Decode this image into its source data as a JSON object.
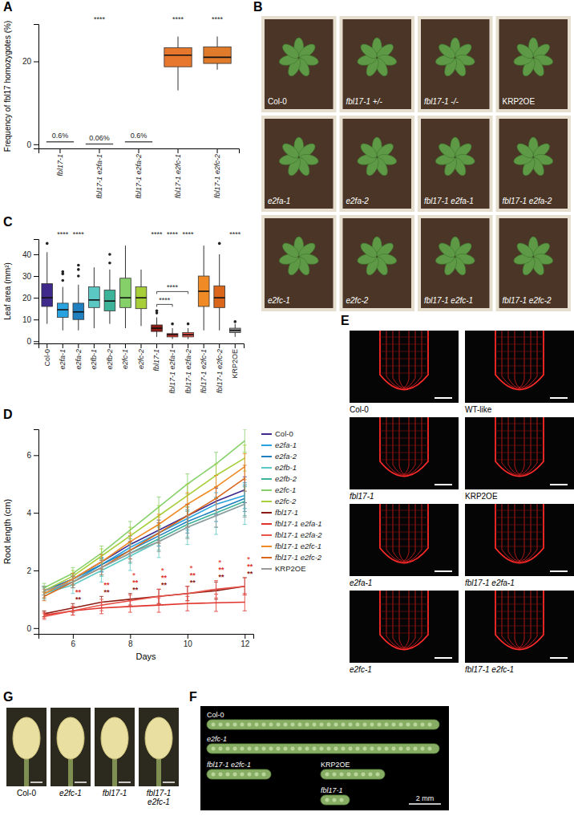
{
  "chart_data": [
    {
      "panel": "A",
      "type": "box",
      "y_label": "Frequency of fbl17 homozygotes (%)",
      "categories": [
        "fbl17-1",
        "fbl17-1 e2fa-1",
        "fbl17-1 e2fa-2",
        "fbl17-1 e2fc-1",
        "fbl17-1 e2fc-2"
      ],
      "boxes": [
        {
          "whislo": 0.6,
          "q1": 0.6,
          "med": 0.6,
          "q3": 0.6,
          "whishi": 0.6,
          "fliers": []
        },
        {
          "whislo": 0.06,
          "q1": 0.06,
          "med": 0.06,
          "q3": 0.06,
          "whishi": 0.06,
          "fliers": []
        },
        {
          "whislo": 0.6,
          "q1": 0.6,
          "med": 0.6,
          "q3": 0.6,
          "whishi": 0.6,
          "fliers": []
        },
        {
          "whislo": 13,
          "q1": 18.7,
          "med": 21.5,
          "q3": 23.3,
          "whishi": 26,
          "fliers": []
        },
        {
          "whislo": 18,
          "q1": 19.5,
          "med": 21,
          "q3": 23.5,
          "whishi": 26,
          "fliers": []
        }
      ],
      "colors": [
        "#555555",
        "#555555",
        "#555555",
        "#e8772e",
        "#e07b2c"
      ],
      "ylim": [
        -1,
        29
      ],
      "yticks": [
        0,
        20
      ],
      "box_labels": [
        {
          "category": 0,
          "text": "0.6%"
        },
        {
          "category": 1,
          "text": "0.06%"
        },
        {
          "category": 2,
          "text": "0.6%"
        }
      ],
      "significance": [
        {
          "category": 1,
          "text": "****"
        },
        {
          "category": 3,
          "text": "****"
        },
        {
          "category": 4,
          "text": "****"
        }
      ]
    },
    {
      "panel": "C",
      "type": "box",
      "y_label": "Leaf area (mm²)",
      "categories": [
        "Col-0",
        "e2fa-1",
        "e2fa-2",
        "e2fb-1",
        "e2fb-2",
        "e2fc-1",
        "e2fc-2",
        "fbl17-1",
        "fbl17-1 e2fa-1",
        "fbl17-1 e2fa-2",
        "fbl17-1 e2fc-1",
        "fbl17-1 e2fc-2",
        "KRP2OE"
      ],
      "boxes": [
        {
          "whislo": 8,
          "q1": 16,
          "med": 20,
          "q3": 26.5,
          "whishi": 41,
          "fliers": [
            45
          ]
        },
        {
          "whislo": 5,
          "q1": 11,
          "med": 14.5,
          "q3": 17.5,
          "whishi": 25,
          "fliers": [
            28,
            31,
            32
          ]
        },
        {
          "whislo": 5,
          "q1": 10,
          "med": 13.5,
          "q3": 17.5,
          "whishi": 26,
          "fliers": [
            30,
            33,
            35
          ]
        },
        {
          "whislo": 6,
          "q1": 15.5,
          "med": 19,
          "q3": 25,
          "whishi": 34,
          "fliers": []
        },
        {
          "whislo": 8,
          "q1": 14,
          "med": 18.5,
          "q3": 23.5,
          "whishi": 33,
          "fliers": [
            36,
            40
          ]
        },
        {
          "whislo": 6,
          "q1": 15.5,
          "med": 20,
          "q3": 29,
          "whishi": 44,
          "fliers": []
        },
        {
          "whislo": 7,
          "q1": 15,
          "med": 20,
          "q3": 25,
          "whishi": 33,
          "fliers": []
        },
        {
          "whislo": 2,
          "q1": 4.5,
          "med": 6,
          "q3": 7.5,
          "whishi": 11,
          "fliers": [
            13,
            14
          ]
        },
        {
          "whislo": 1,
          "q1": 2,
          "med": 3,
          "q3": 3.5,
          "whishi": 6,
          "fliers": [
            8
          ]
        },
        {
          "whislo": 1,
          "q1": 2,
          "med": 3,
          "q3": 4,
          "whishi": 6,
          "fliers": [
            8
          ]
        },
        {
          "whislo": 5,
          "q1": 16,
          "med": 23,
          "q3": 30,
          "whishi": 44,
          "fliers": []
        },
        {
          "whislo": 5,
          "q1": 15.5,
          "med": 20,
          "q3": 25.5,
          "whishi": 40,
          "fliers": [
            45
          ]
        },
        {
          "whislo": 2,
          "q1": 4,
          "med": 5,
          "q3": 6,
          "whishi": 8,
          "fliers": [
            9
          ]
        }
      ],
      "colors": [
        "#3f2a8c",
        "#29a3e0",
        "#1f7fbf",
        "#5bc8c4",
        "#3db39a",
        "#86d06a",
        "#a6cf3a",
        "#8c1c13",
        "#e0312a",
        "#e8534a",
        "#f08a24",
        "#d9661a",
        "#9a9a9a"
      ],
      "ylim": [
        -1,
        47
      ],
      "yticks": [
        0,
        10,
        20,
        30,
        40
      ],
      "significance": [
        {
          "category": 1,
          "text": "****"
        },
        {
          "category": 2,
          "text": "****"
        },
        {
          "category": 7,
          "text": "****"
        },
        {
          "category": 8,
          "text": "****"
        },
        {
          "category": 9,
          "text": "****"
        },
        {
          "category": 12,
          "text": "****"
        }
      ],
      "brackets": [
        {
          "from": 7,
          "to": 8,
          "text": "****"
        },
        {
          "from": 7,
          "to": 9,
          "text": "****"
        }
      ]
    },
    {
      "panel": "D",
      "type": "line",
      "x_label": "Days",
      "y_label": "Root length (cm)",
      "x": [
        5,
        6,
        7,
        8,
        9,
        10,
        11,
        12
      ],
      "xlim": [
        4.8,
        12.3
      ],
      "xticks": [
        6,
        8,
        10,
        12
      ],
      "ylim": [
        -0.2,
        6.9
      ],
      "yticks": [
        0,
        2,
        4,
        6
      ],
      "legend": "right",
      "series": [
        {
          "name": "Col-0",
          "color": "#3f2a8c",
          "values": [
            1.3,
            1.7,
            2.3,
            2.9,
            3.4,
            3.9,
            4.4,
            4.8
          ],
          "errors": [
            0.15,
            0.2,
            0.25,
            0.3,
            0.35,
            0.4,
            0.45,
            0.45
          ]
        },
        {
          "name": "e2fa-1",
          "color": "#29a3e0",
          "values": [
            1.2,
            1.6,
            2.2,
            2.8,
            3.3,
            3.8,
            4.3,
            4.6
          ],
          "errors": [
            0.15,
            0.2,
            0.25,
            0.3,
            0.35,
            0.4,
            0.4,
            0.45
          ]
        },
        {
          "name": "e2fa-2",
          "color": "#1f7fbf",
          "values": [
            1.3,
            1.7,
            2.2,
            2.7,
            3.2,
            3.7,
            4.1,
            4.5
          ],
          "errors": [
            0.15,
            0.2,
            0.25,
            0.3,
            0.35,
            0.4,
            0.4,
            0.45
          ]
        },
        {
          "name": "e2fb-1",
          "color": "#5bc8c4",
          "values": [
            1.2,
            1.5,
            2.0,
            2.5,
            3.0,
            3.5,
            3.9,
            4.3
          ],
          "errors": [
            0.2,
            0.3,
            0.4,
            0.5,
            0.55,
            0.6,
            0.65,
            0.7
          ]
        },
        {
          "name": "e2fb-2",
          "color": "#3db39a",
          "values": [
            1.3,
            1.6,
            2.1,
            2.6,
            3.1,
            3.6,
            4.0,
            4.4
          ],
          "errors": [
            0.15,
            0.2,
            0.3,
            0.35,
            0.4,
            0.45,
            0.5,
            0.5
          ]
        },
        {
          "name": "e2fc-1",
          "color": "#86d06a",
          "values": [
            1.4,
            1.9,
            2.6,
            3.4,
            4.2,
            5.0,
            5.7,
            6.5
          ],
          "errors": [
            0.15,
            0.2,
            0.25,
            0.3,
            0.35,
            0.35,
            0.4,
            0.4
          ]
        },
        {
          "name": "e2fc-2",
          "color": "#a6cf3a",
          "values": [
            1.3,
            1.8,
            2.5,
            3.2,
            3.9,
            4.6,
            5.3,
            5.9
          ],
          "errors": [
            0.15,
            0.2,
            0.25,
            0.3,
            0.35,
            0.4,
            0.4,
            0.45
          ]
        },
        {
          "name": "fbl17-1",
          "color": "#8c1c13",
          "values": [
            0.5,
            0.7,
            0.9,
            1.0,
            1.1,
            1.2,
            1.3,
            1.45
          ],
          "errors": [
            0.1,
            0.15,
            0.2,
            0.2,
            0.25,
            0.25,
            0.3,
            0.3
          ]
        },
        {
          "name": "fbl17-1 e2fa-1",
          "color": "#e0312a",
          "values": [
            0.45,
            0.6,
            0.7,
            0.75,
            0.8,
            0.85,
            0.88,
            0.9
          ],
          "errors": [
            0.1,
            0.15,
            0.2,
            0.2,
            0.25,
            0.25,
            0.3,
            0.3
          ]
        },
        {
          "name": "fbl17-1 e2fa-2",
          "color": "#e8534a",
          "values": [
            0.4,
            0.6,
            0.8,
            0.95,
            1.1,
            1.2,
            1.35,
            1.45
          ],
          "errors": [
            0.1,
            0.15,
            0.2,
            0.2,
            0.25,
            0.25,
            0.3,
            0.3
          ]
        },
        {
          "name": "fbl17-1 e2fc-1",
          "color": "#f08a24",
          "values": [
            1.2,
            1.7,
            2.3,
            3.0,
            3.6,
            4.3,
            4.9,
            5.6
          ],
          "errors": [
            0.15,
            0.2,
            0.25,
            0.3,
            0.35,
            0.4,
            0.4,
            0.45
          ]
        },
        {
          "name": "fbl17-1 e2fc-2",
          "color": "#d9661a",
          "values": [
            1.1,
            1.6,
            2.1,
            2.7,
            3.3,
            3.9,
            4.5,
            5.2
          ],
          "errors": [
            0.15,
            0.2,
            0.25,
            0.3,
            0.35,
            0.4,
            0.4,
            0.45
          ]
        },
        {
          "name": "KRP2OE",
          "color": "#9a9a9a",
          "values": [
            1.3,
            1.6,
            2.1,
            2.6,
            3.0,
            3.5,
            3.9,
            4.3
          ],
          "errors": [
            0.15,
            0.2,
            0.25,
            0.3,
            0.35,
            0.4,
            0.4,
            0.45
          ]
        }
      ],
      "annotations": [
        {
          "series": 7,
          "x": [
            6,
            7,
            8,
            9,
            10,
            11,
            12
          ],
          "text": "**"
        },
        {
          "series": 8,
          "x": [
            6,
            7,
            8,
            9,
            10,
            11,
            12
          ],
          "text": "**"
        },
        {
          "series": 9,
          "x": [
            8,
            9,
            10,
            11,
            12
          ],
          "text": "*"
        }
      ]
    }
  ],
  "image_panels": [
    {
      "panel": "B",
      "labels": [
        "Col-0",
        "fbl17-1 +/-",
        "fbl17-1 -/-",
        "KRP2OE",
        "e2fa-1",
        "e2fa-2",
        "fbl17-1 e2fa-1",
        "fbl17-1 e2fa-2",
        "e2fc-1",
        "e2fc-2",
        "fbl17-1 e2fc-1",
        "fbl17-1 e2fc-2"
      ]
    },
    {
      "panel": "E",
      "labels": [
        "Col-0",
        "WT-like",
        "fbl17-1",
        "KRP2OE",
        "e2fa-1",
        "fbl17-1 e2fa-1",
        "e2fc-1",
        "fbl17-1 e2fc-1"
      ]
    },
    {
      "panel": "F",
      "labels": [
        "Col-0",
        "e2fc-1",
        "fbl17-1 e2fc-1",
        "KRP2OE",
        "fbl17-1"
      ],
      "scale_bar": "2 mm"
    },
    {
      "panel": "G",
      "labels": [
        "Col-0",
        "e2fc-1",
        "fbl17-1",
        "fbl17-1 e2fc-1"
      ]
    }
  ]
}
